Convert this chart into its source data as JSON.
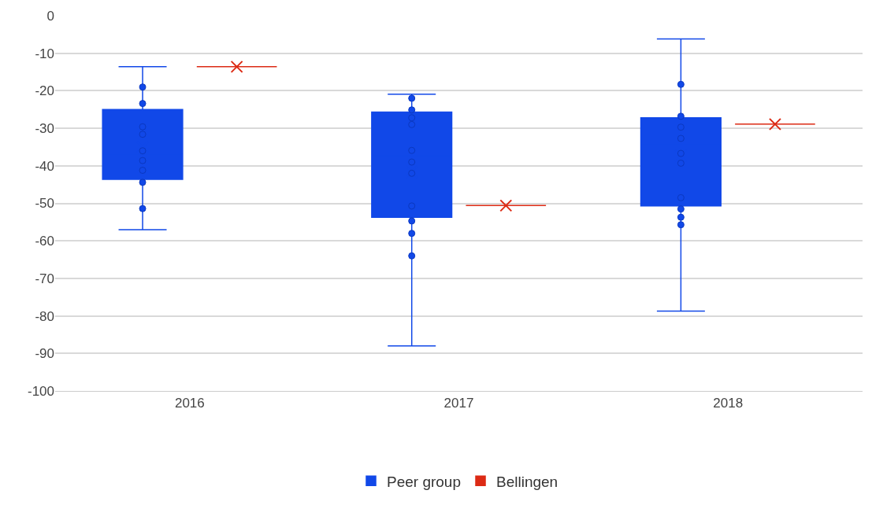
{
  "chart_data": {
    "type": "box",
    "categories": [
      "2016",
      "2017",
      "2018"
    ],
    "series": [
      {
        "name": "Peer group",
        "color": "#1148e8",
        "boxes": [
          {
            "low": -57,
            "q1": -43.6,
            "median": -36.8,
            "q3": -25,
            "high": -13.6,
            "mean": -35
          },
          {
            "low": -88,
            "q1": -53.7,
            "median": -37.3,
            "q3": -25.7,
            "high": -20.9,
            "mean": -41.6
          },
          {
            "low": -78.7,
            "q1": -50.7,
            "median": -34.1,
            "q3": -27.2,
            "high": -6.2,
            "mean": -37.3
          }
        ]
      },
      {
        "name": "Bellingen",
        "color": "#dc2a14",
        "boxes": [
          {
            "low": -13.6,
            "q1": -13.6,
            "median": -13.6,
            "q3": -13.6,
            "high": -13.6,
            "mean": -13.6
          },
          {
            "low": -50.6,
            "q1": -50.6,
            "median": -50.6,
            "q3": -50.6,
            "high": -50.6,
            "mean": -50.6
          },
          {
            "low": -28.9,
            "q1": -28.9,
            "median": -28.9,
            "q3": -28.9,
            "high": -28.9,
            "mean": -28.9
          }
        ]
      },
      {
        "type": "scatter",
        "color": "#1148e8",
        "marker": "circle",
        "values": [
          -19,
          -22,
          -18.3
        ]
      },
      {
        "type": "scatter",
        "color": "#1148e8",
        "marker": "circle",
        "values": [
          -23.4,
          -25.1,
          -26.8
        ]
      },
      {
        "type": "scatter",
        "color": "#1148e8",
        "marker": "circle",
        "values": [
          -29.6,
          -27.2,
          -29.7
        ]
      },
      {
        "type": "scatter",
        "color": "#1148e8",
        "marker": "circle",
        "values": [
          -31.6,
          -29,
          -32.7
        ]
      },
      {
        "type": "scatter",
        "color": "#1148e8",
        "marker": "circle",
        "values": [
          -36,
          -35.9,
          -36.7
        ]
      },
      {
        "type": "scatter",
        "color": "#1148e8",
        "marker": "circle",
        "values": [
          -38.6,
          -39,
          -39.3
        ]
      },
      {
        "type": "scatter",
        "color": "#1148e8",
        "marker": "circle",
        "values": [
          -41.2,
          -42,
          -48.5
        ]
      },
      {
        "type": "scatter",
        "color": "#1148e8",
        "marker": "circle",
        "values": [
          -44.4,
          -50.7,
          -51.5
        ]
      },
      {
        "type": "scatter",
        "color": "#1148e8",
        "marker": "circle",
        "values": [
          -51.4,
          -54.7,
          -53.7
        ]
      },
      {
        "type": "scatter",
        "color": "#1148e8",
        "marker": "circle",
        "values": [
          null,
          -58,
          -55.7
        ]
      },
      {
        "type": "scatter",
        "color": "#1148e8",
        "marker": "circle",
        "values": [
          null,
          -64,
          null
        ]
      }
    ],
    "ylim": [
      -100,
      0
    ],
    "yticks": [
      -100,
      -90,
      -80,
      -70,
      -60,
      -50,
      -40,
      -30,
      -20,
      -10,
      0
    ],
    "grid": "y",
    "legend": "bottom"
  }
}
